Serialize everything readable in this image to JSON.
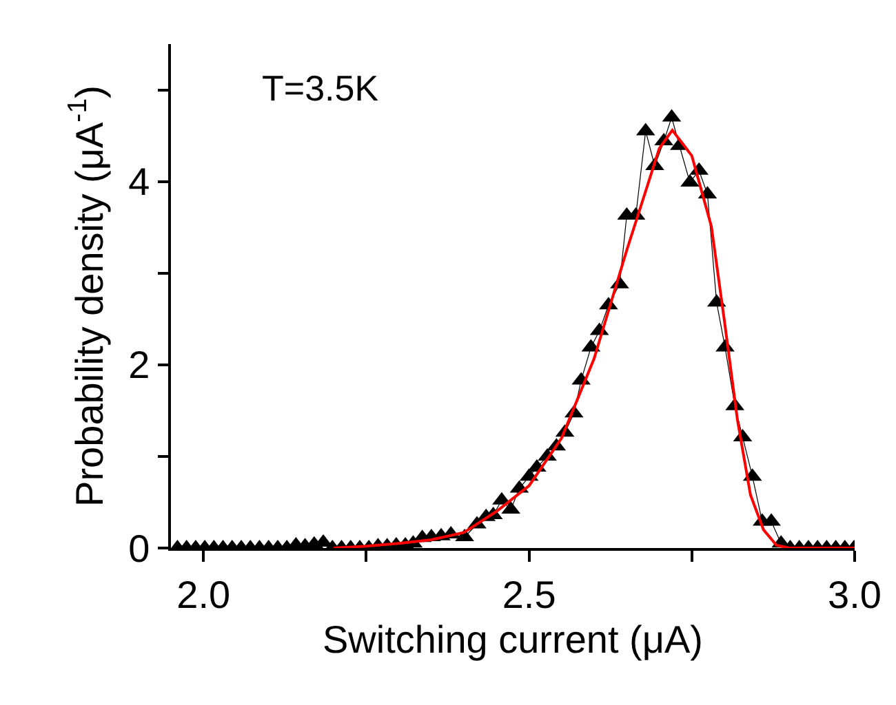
{
  "chart_data": {
    "type": "line",
    "xlabel": "Switching current (μA)",
    "ylabel": "Probability density (μA$^{-1}$)",
    "annotations": [
      "T=3.5K"
    ],
    "xlim": [
      1.95,
      3.0
    ],
    "ylim": [
      0,
      5.5
    ],
    "xticks": [
      {
        "value": 2.0,
        "label": "2.0"
      },
      {
        "value": 2.25,
        "label": null
      },
      {
        "value": 2.5,
        "label": "2.5"
      },
      {
        "value": 2.75,
        "label": null
      },
      {
        "value": 3.0,
        "label": "3.0"
      }
    ],
    "yticks": [
      0,
      {
        "value": 1,
        "label": null
      },
      2,
      {
        "value": 3,
        "label": null
      },
      4,
      {
        "value": 5,
        "label": null
      }
    ],
    "series": [
      {
        "color": "#000000",
        "marker": "triangle",
        "line_style": "solid",
        "x": [
          1.96,
          1.974,
          1.988,
          2.002,
          2.016,
          2.03,
          2.044,
          2.058,
          2.072,
          2.086,
          2.1,
          2.114,
          2.128,
          2.142,
          2.156,
          2.17,
          2.184,
          2.198,
          2.212,
          2.226,
          2.24,
          2.254,
          2.268,
          2.282,
          2.296,
          2.31,
          2.322,
          2.336,
          2.35,
          2.365,
          2.38,
          2.401,
          2.42,
          2.434,
          2.445,
          2.458,
          2.472,
          2.485,
          2.5,
          2.512,
          2.528,
          2.542,
          2.555,
          2.569,
          2.58,
          2.595,
          2.608,
          2.622,
          2.639,
          2.65,
          2.664,
          2.679,
          2.693,
          2.707,
          2.719,
          2.731,
          2.747,
          2.761,
          2.774,
          2.788,
          2.801,
          2.816,
          2.828,
          2.843,
          2.858,
          2.872,
          2.887,
          2.901,
          2.915,
          2.929,
          2.943,
          2.957,
          2.971,
          2.985,
          2.999
        ],
        "values": [
          0,
          0,
          0,
          0,
          0,
          0,
          0,
          0,
          0,
          0,
          0,
          0,
          0,
          0.03,
          0.02,
          0.04,
          0.06,
          0,
          0,
          0,
          0,
          0,
          0.02,
          0.02,
          0.03,
          0.03,
          0.05,
          0.11,
          0.12,
          0.13,
          0.15,
          0.12,
          0.26,
          0.34,
          0.36,
          0.52,
          0.42,
          0.65,
          0.78,
          0.88,
          1.0,
          1.11,
          1.26,
          1.47,
          1.83,
          2.19,
          2.37,
          2.65,
          2.88,
          3.63,
          3.63,
          4.55,
          4.17,
          4.44,
          4.7,
          4.39,
          3.99,
          4.12,
          3.86,
          2.68,
          2.19,
          1.55,
          1.21,
          0.78,
          0.29,
          0.29,
          0.05,
          0,
          0,
          0,
          0,
          0,
          0,
          0,
          0
        ]
      },
      {
        "color": "#ff0000",
        "marker": "none",
        "line_style": "solid",
        "x": [
          2.2,
          2.25,
          2.3,
          2.35,
          2.4,
          2.45,
          2.5,
          2.55,
          2.6,
          2.65,
          2.7,
          2.72,
          2.75,
          2.78,
          2.8,
          2.82,
          2.84,
          2.86,
          2.88,
          2.9,
          3.0
        ],
        "values": [
          0,
          0.02,
          0.05,
          0.09,
          0.17,
          0.4,
          0.68,
          1.2,
          2.07,
          3.25,
          4.36,
          4.56,
          4.28,
          3.51,
          2.48,
          1.4,
          0.58,
          0.2,
          0.03,
          0,
          0
        ]
      }
    ]
  }
}
